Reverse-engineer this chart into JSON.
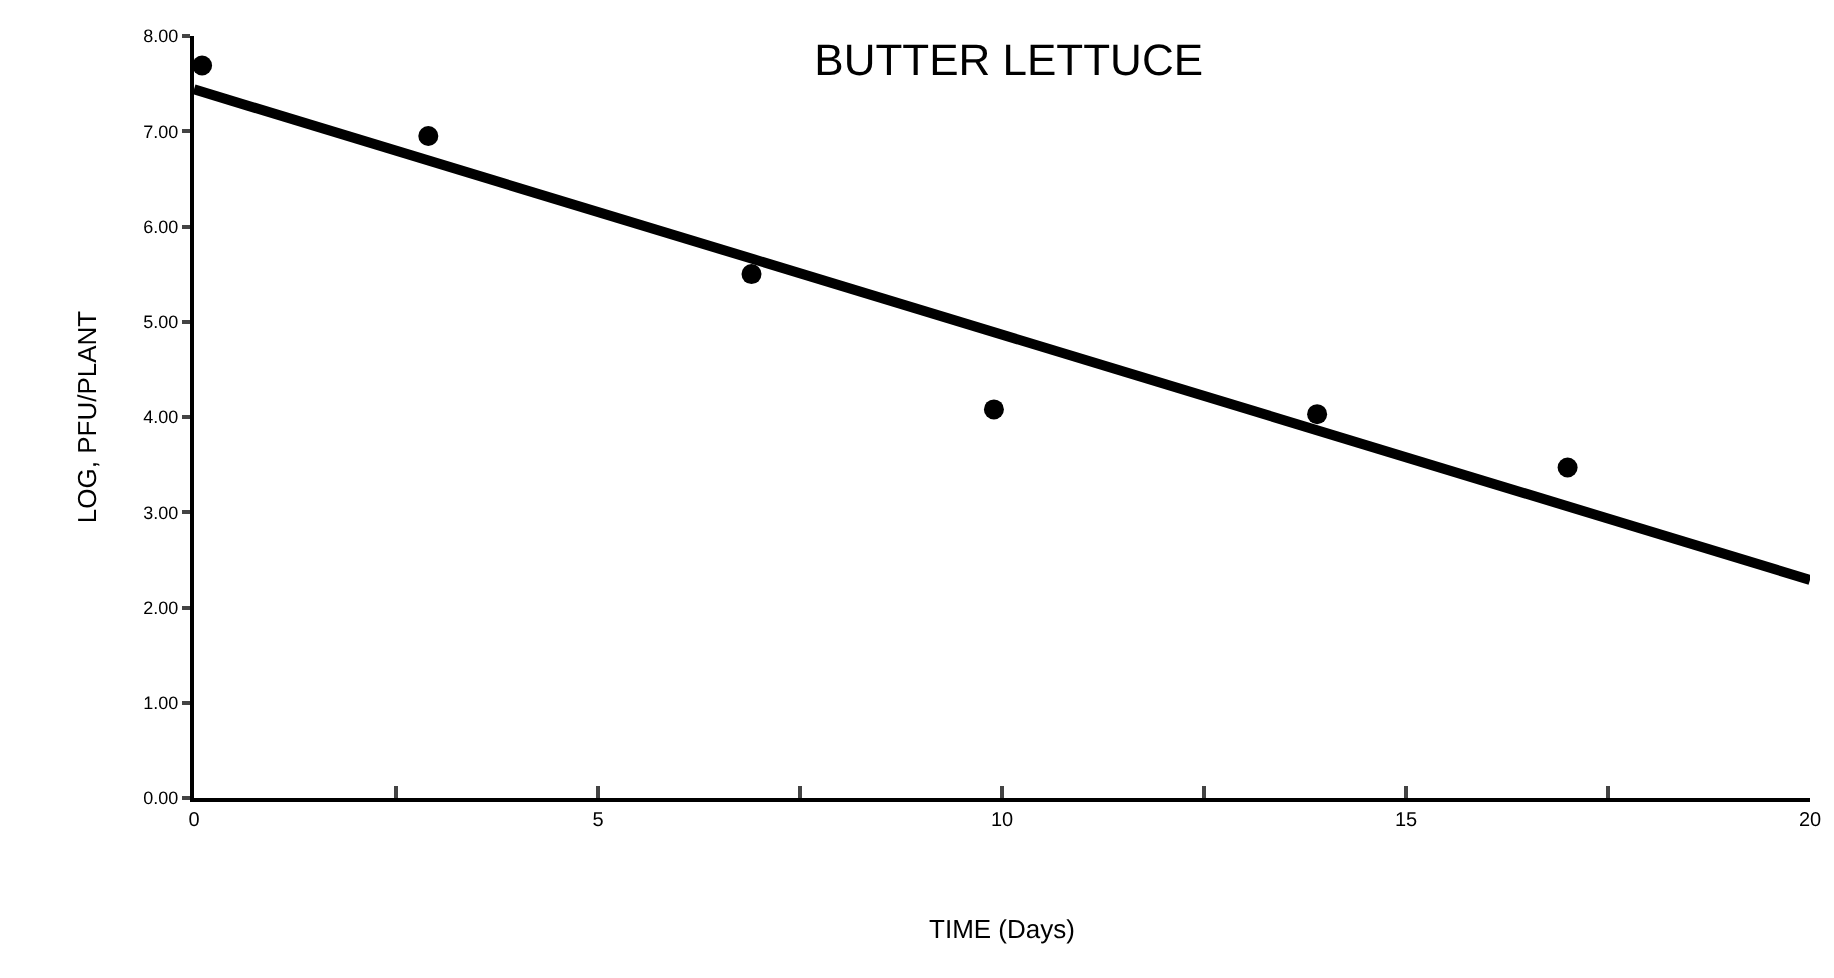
{
  "chart_data": {
    "type": "scatter",
    "title": "BUTTER LETTUCE",
    "xlabel": "TIME (Days)",
    "ylabel": "LOG, PFU/PLANT",
    "series": [
      {
        "color": "#000000",
        "marker": "circle",
        "x": [
          0.1,
          2.9,
          6.9,
          9.9,
          13.9,
          17.0
        ],
        "values": [
          7.69,
          6.95,
          5.5,
          4.08,
          4.03,
          3.47
        ]
      },
      {
        "type": "line",
        "color": "#000000",
        "marker": "none",
        "x": [
          0,
          20
        ],
        "values": [
          7.44,
          2.29
        ]
      }
    ],
    "xlim": [
      0,
      20
    ],
    "xticks": [
      0,
      {
        "value": 2.5,
        "label": null
      },
      5,
      {
        "value": 7.5,
        "label": null
      },
      10,
      {
        "value": 12.5,
        "label": null
      },
      15,
      {
        "value": 17.5,
        "label": null
      },
      20
    ],
    "ylim": [
      0,
      8
    ],
    "yticks": [
      {
        "value": 0,
        "label": "0.00"
      },
      {
        "value": 1,
        "label": "1.00"
      },
      {
        "value": 2,
        "label": "2.00"
      },
      {
        "value": 3,
        "label": "3.00"
      },
      {
        "value": 4,
        "label": "4.00"
      },
      {
        "value": 5,
        "label": "5.00"
      },
      {
        "value": 6,
        "label": "6.00"
      },
      {
        "value": 7,
        "label": "7.00"
      },
      {
        "value": 8,
        "label": "8.00"
      }
    ],
    "grid": false
  }
}
